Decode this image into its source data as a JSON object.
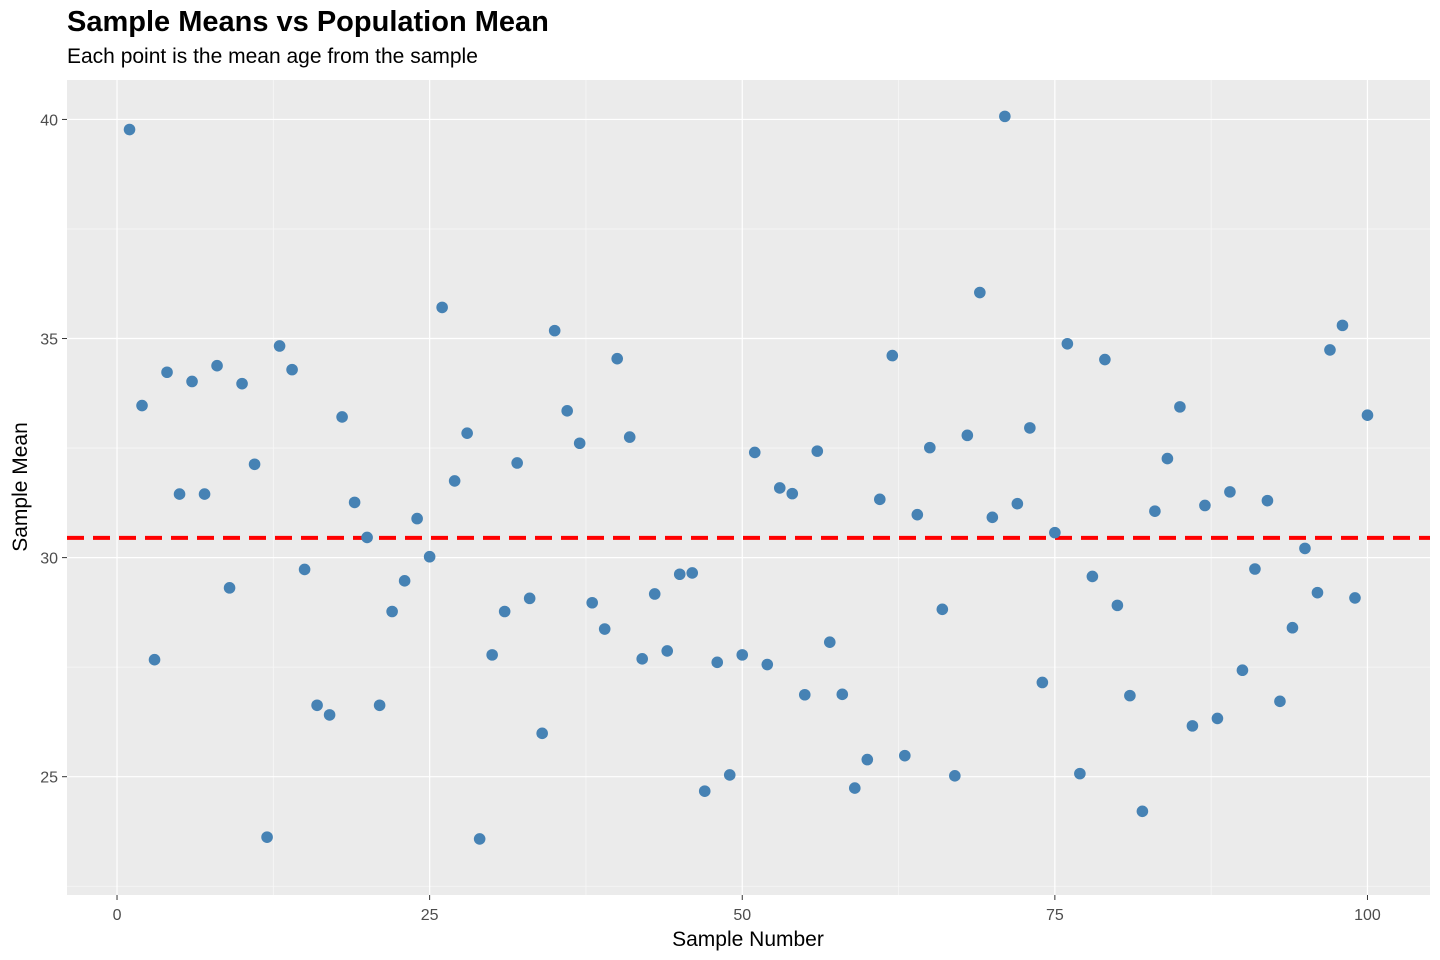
{
  "chart_data": {
    "type": "scatter",
    "title": "Sample Means vs Population Mean",
    "subtitle": "Each point is the mean age from the sample",
    "xlabel": "Sample Number",
    "ylabel": "Sample Mean",
    "xlim": [
      -4,
      105
    ],
    "ylim": [
      22.3,
      40.9
    ],
    "x_ticks": [
      0,
      25,
      50,
      75,
      100
    ],
    "y_ticks": [
      25,
      30,
      35,
      40
    ],
    "grid": true,
    "point_color": "#4682b4",
    "reference_line": {
      "y": 30.45,
      "color": "#ff0000",
      "style": "dashed"
    },
    "x": [
      1,
      2,
      3,
      4,
      5,
      6,
      7,
      8,
      9,
      10,
      11,
      12,
      13,
      14,
      15,
      16,
      17,
      18,
      19,
      20,
      21,
      22,
      23,
      24,
      25,
      26,
      27,
      28,
      29,
      30,
      31,
      32,
      33,
      34,
      35,
      36,
      37,
      38,
      39,
      40,
      41,
      42,
      43,
      44,
      45,
      46,
      47,
      48,
      49,
      50,
      51,
      52,
      53,
      54,
      55,
      56,
      57,
      58,
      59,
      60,
      61,
      62,
      63,
      64,
      65,
      66,
      67,
      68,
      69,
      70,
      71,
      72,
      73,
      74,
      75,
      76,
      77,
      78,
      79,
      80,
      81,
      82,
      83,
      84,
      85,
      86,
      87,
      88,
      89,
      90,
      91,
      92,
      93,
      94,
      95,
      96,
      97,
      98,
      99,
      100
    ],
    "y": [
      39.77,
      33.47,
      27.67,
      34.23,
      31.45,
      34.02,
      31.45,
      34.38,
      29.31,
      33.97,
      32.13,
      23.62,
      34.83,
      34.29,
      29.73,
      26.63,
      26.41,
      33.21,
      31.26,
      30.46,
      26.63,
      28.77,
      29.47,
      30.89,
      30.02,
      35.71,
      31.75,
      32.84,
      23.58,
      27.78,
      28.77,
      32.16,
      29.07,
      25.99,
      35.18,
      33.35,
      32.61,
      28.97,
      28.37,
      34.54,
      32.75,
      27.69,
      29.17,
      27.87,
      29.62,
      29.65,
      24.67,
      27.61,
      25.04,
      27.78,
      32.4,
      27.56,
      31.59,
      31.46,
      26.87,
      32.43,
      28.07,
      26.88,
      24.74,
      25.39,
      31.33,
      34.61,
      25.48,
      30.98,
      32.51,
      28.82,
      25.02,
      32.79,
      36.05,
      30.92,
      40.07,
      31.23,
      32.96,
      27.15,
      30.57,
      34.88,
      25.07,
      29.57,
      34.52,
      28.91,
      26.85,
      24.21,
      31.06,
      32.26,
      33.44,
      26.16,
      31.19,
      26.33,
      31.5,
      27.43,
      29.74,
      31.3,
      26.72,
      28.4,
      30.21,
      29.2,
      34.74,
      35.3,
      29.08,
      33.25
    ]
  }
}
